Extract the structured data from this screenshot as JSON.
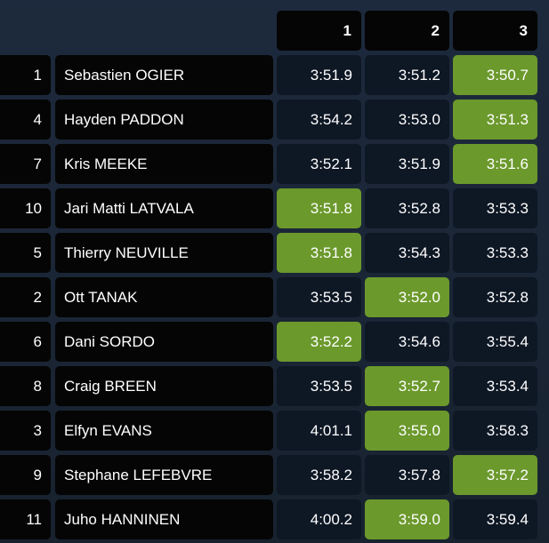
{
  "table": {
    "headers": [
      "1",
      "2",
      "3"
    ],
    "rows": [
      [
        1,
        "Sebastien OGIER",
        "3:51.9",
        "3:51.2",
        "3:50.7"
      ],
      [
        4,
        "Hayden PADDON",
        "3:54.2",
        "3:53.0",
        "3:51.3"
      ],
      [
        7,
        "Kris MEEKE",
        "3:52.1",
        "3:51.9",
        "3:51.6"
      ],
      [
        10,
        "Jari Matti LATVALA",
        "3:51.8",
        "3:52.8",
        "3:53.3"
      ],
      [
        5,
        "Thierry NEUVILLE",
        "3:51.8",
        "3:54.3",
        "3:53.3"
      ],
      [
        2,
        "Ott TANAK",
        "3:53.5",
        "3:52.0",
        "3:52.8"
      ],
      [
        6,
        "Dani SORDO",
        "3:52.2",
        "3:54.6",
        "3:55.4"
      ],
      [
        8,
        "Craig BREEN",
        "3:53.5",
        "3:52.7",
        "3:53.4"
      ],
      [
        3,
        "Elfyn EVANS",
        "4:01.1",
        "3:55.0",
        "3:58.3"
      ],
      [
        9,
        "Stephane LEFEBVRE",
        "3:58.2",
        "3:57.8",
        "3:57.2"
      ],
      [
        11,
        "Juho HANNINEN",
        "4:00.2",
        "3:59.0",
        "3:59.4"
      ]
    ]
  }
}
